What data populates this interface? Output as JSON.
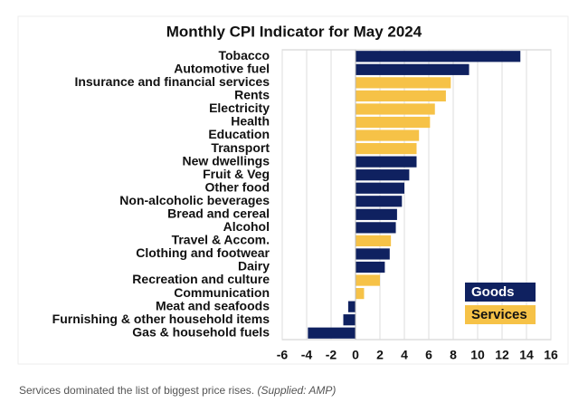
{
  "chart_data": {
    "type": "bar",
    "orientation": "horizontal",
    "title": "Monthly CPI Indicator for May 2024",
    "categories": [
      "Tobacco",
      "Automotive fuel",
      "Insurance and financial services",
      "Rents",
      "Electricity",
      "Health",
      "Education",
      "Transport",
      "New dwellings",
      "Fruit & Veg",
      "Other food",
      "Non-alcoholic beverages",
      "Bread and cereal",
      "Alcohol",
      "Travel & Accom.",
      "Clothing and footwear",
      "Dairy",
      "Recreation and culture",
      "Communication",
      "Meat and seafoods",
      "Furnishing & other household items",
      "Gas & household fuels"
    ],
    "series": [
      {
        "name": "Goods",
        "color": "#0f2160",
        "values": [
          13.5,
          9.3,
          null,
          null,
          null,
          null,
          null,
          null,
          5.0,
          4.4,
          4.0,
          3.8,
          3.4,
          3.3,
          null,
          2.8,
          2.4,
          null,
          null,
          -0.6,
          -1.0,
          -3.9
        ]
      },
      {
        "name": "Services",
        "color": "#f6c247",
        "values": [
          null,
          null,
          7.8,
          7.4,
          6.5,
          6.1,
          5.2,
          5.0,
          null,
          null,
          null,
          null,
          null,
          null,
          2.9,
          null,
          null,
          2.0,
          0.7,
          null,
          null,
          null
        ]
      }
    ],
    "xlim": [
      -6,
      16
    ],
    "xticks": [
      -6,
      -4,
      -2,
      0,
      2,
      4,
      6,
      8,
      10,
      12,
      14,
      16
    ],
    "grid": true,
    "legend": "lower right"
  },
  "caption": {
    "text": "Services dominated the list of biggest price rises.",
    "source": "(Supplied: AMP)"
  }
}
